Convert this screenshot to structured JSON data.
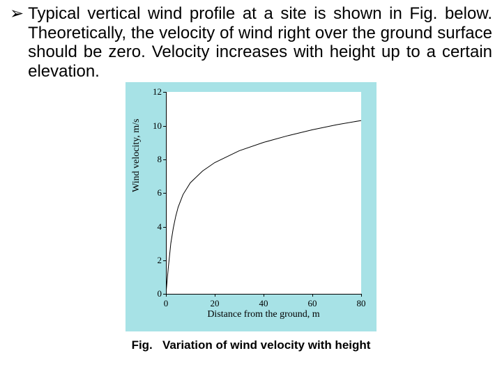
{
  "paragraph": {
    "bullet_glyph": "➢",
    "text": "Typical vertical wind profile at a site is shown in Fig. below. Theoretically, the velocity of wind right over the ground surface should be zero. Velocity increases with height up to a certain elevation."
  },
  "chart": {
    "type": "line",
    "background_color": "#a7e2e6",
    "plot_bg": "#ffffff",
    "line_color": "#000000",
    "line_width": 1,
    "xlim": [
      0,
      80
    ],
    "ylim": [
      0,
      12
    ],
    "xticks": [
      0,
      20,
      40,
      60,
      80
    ],
    "yticks": [
      0,
      2,
      4,
      6,
      8,
      10,
      12
    ],
    "xlabel": "Distance from the ground, m",
    "ylabel": "Wind velocity, m/s",
    "label_fontsize": 14,
    "tick_fontsize": 13,
    "data": {
      "x": [
        0,
        0.5,
        1,
        1.5,
        2,
        3,
        4,
        5,
        7,
        10,
        15,
        20,
        30,
        40,
        50,
        60,
        70,
        80
      ],
      "y": [
        0,
        0.8,
        1.6,
        2.3,
        3.0,
        3.9,
        4.6,
        5.15,
        5.9,
        6.6,
        7.3,
        7.8,
        8.5,
        9.0,
        9.4,
        9.75,
        10.05,
        10.3
      ]
    }
  },
  "caption": {
    "prefix": "Fig.",
    "text": "Variation of wind velocity with height"
  }
}
